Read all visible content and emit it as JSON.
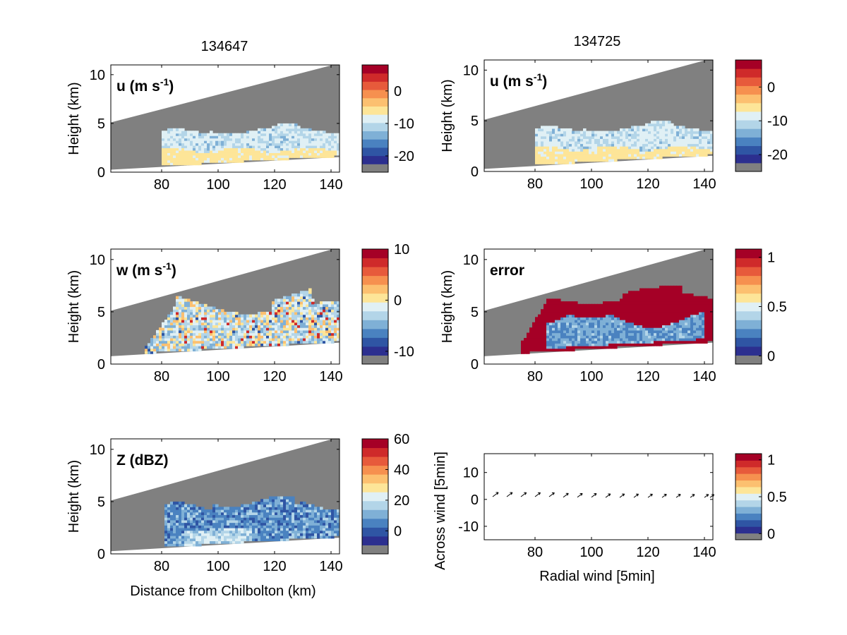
{
  "figure": {
    "col_titles": [
      "134647",
      "134725"
    ]
  },
  "palette": [
    "#2c2f8f",
    "#2f55a4",
    "#4a82c0",
    "#7fb0d6",
    "#b3d5e8",
    "#e0f0f5",
    "#fde598",
    "#fcc070",
    "#f6904f",
    "#e75a3b",
    "#cf2a2a",
    "#a50026"
  ],
  "nodata_color": "#808080",
  "axis_text": {
    "height_ylabel": "Height (km)",
    "x_distance_label": "Distance from Chilbolton (km)",
    "across_wind_ylabel": "Across wind [5min]",
    "radial_wind_xlabel": "Radial wind [5min]"
  },
  "chart_data": [
    {
      "id": "u-left",
      "type": "heatmap",
      "title": "",
      "field_label": "u (m s",
      "field_label_sup": "-1",
      "field_label_end": ")",
      "xlabel": "",
      "ylabel": "Height (km)",
      "xlim": [
        62,
        143
      ],
      "ylim": [
        0,
        11
      ],
      "xticks": [
        80,
        100,
        120,
        140
      ],
      "yticks": [
        0,
        5,
        10
      ],
      "colorbar": {
        "range": [
          -25,
          8
        ],
        "ticks": [
          0,
          -10,
          -20
        ],
        "tick_labels": [
          "0",
          "-10",
          "-20"
        ]
      }
    },
    {
      "id": "u-right",
      "type": "heatmap",
      "title": "",
      "field_label": "u (m s",
      "field_label_sup": "-1",
      "field_label_end": ")",
      "xlabel": "",
      "ylabel": "Height (km)",
      "xlim": [
        62,
        143
      ],
      "ylim": [
        0,
        11
      ],
      "xticks": [
        80,
        100,
        120,
        140
      ],
      "yticks": [
        0,
        5,
        10
      ],
      "colorbar": {
        "range": [
          -25,
          8
        ],
        "ticks": [
          0,
          -10,
          -20
        ],
        "tick_labels": [
          "0",
          "-10",
          "-20"
        ]
      }
    },
    {
      "id": "w-left",
      "type": "heatmap",
      "title": "",
      "field_label": "w (m s",
      "field_label_sup": "-1",
      "field_label_end": ")",
      "xlabel": "",
      "ylabel": "Height (km)",
      "xlim": [
        62,
        143
      ],
      "ylim": [
        0,
        11
      ],
      "xticks": [
        80,
        100,
        120,
        140
      ],
      "yticks": [
        0,
        5,
        10
      ],
      "colorbar": {
        "range": [
          -12.5,
          10
        ],
        "ticks": [
          10,
          0,
          -10
        ],
        "tick_labels": [
          "10",
          "0",
          "-10"
        ]
      }
    },
    {
      "id": "error-right",
      "type": "heatmap",
      "title": "",
      "field_label": "error",
      "field_label_sup": "",
      "field_label_end": "",
      "xlabel": "",
      "ylabel": "Height (km)",
      "xlim": [
        62,
        143
      ],
      "ylim": [
        0,
        11
      ],
      "xticks": [
        80,
        100,
        120,
        140
      ],
      "yticks": [
        0,
        5,
        10
      ],
      "colorbar": {
        "range": [
          -0.083,
          1.083
        ],
        "ticks": [
          1,
          0.5,
          0
        ],
        "tick_labels": [
          "1",
          "0.5",
          "0"
        ]
      }
    },
    {
      "id": "z-left",
      "type": "heatmap",
      "title": "",
      "field_label": "Z (dBZ)",
      "field_label_sup": "",
      "field_label_end": "",
      "xlabel": "Distance from Chilbolton (km)",
      "ylabel": "Height (km)",
      "xlim": [
        62,
        143
      ],
      "ylim": [
        0,
        11
      ],
      "xticks": [
        80,
        100,
        120,
        140
      ],
      "yticks": [
        0,
        5,
        10
      ],
      "colorbar": {
        "range": [
          -15,
          60
        ],
        "ticks": [
          60,
          40,
          20,
          0
        ],
        "tick_labels": [
          "60",
          "40",
          "20",
          "0"
        ]
      }
    },
    {
      "id": "wind-right",
      "type": "scatter",
      "title": "",
      "xlabel": "Radial wind [5min]",
      "ylabel": "Across wind [5min]",
      "xlim": [
        62,
        143
      ],
      "ylim": [
        -15,
        17
      ],
      "xticks": [
        80,
        100,
        120,
        140
      ],
      "yticks": [
        10,
        0,
        -10
      ],
      "x": [
        65,
        70,
        75,
        80,
        85,
        90,
        95,
        100,
        105,
        110,
        115,
        120,
        125,
        130,
        135,
        140,
        142
      ],
      "y": [
        1,
        1,
        1,
        1,
        1,
        0.8,
        0.8,
        0.8,
        0.7,
        0.7,
        0.7,
        0.7,
        0.7,
        0.7,
        0.7,
        0.7,
        0.7
      ],
      "colorbar": {
        "range": [
          -0.083,
          1.083
        ],
        "ticks": [
          1,
          0.5,
          0
        ],
        "tick_labels": [
          "1",
          "0.5",
          "0"
        ]
      }
    }
  ]
}
